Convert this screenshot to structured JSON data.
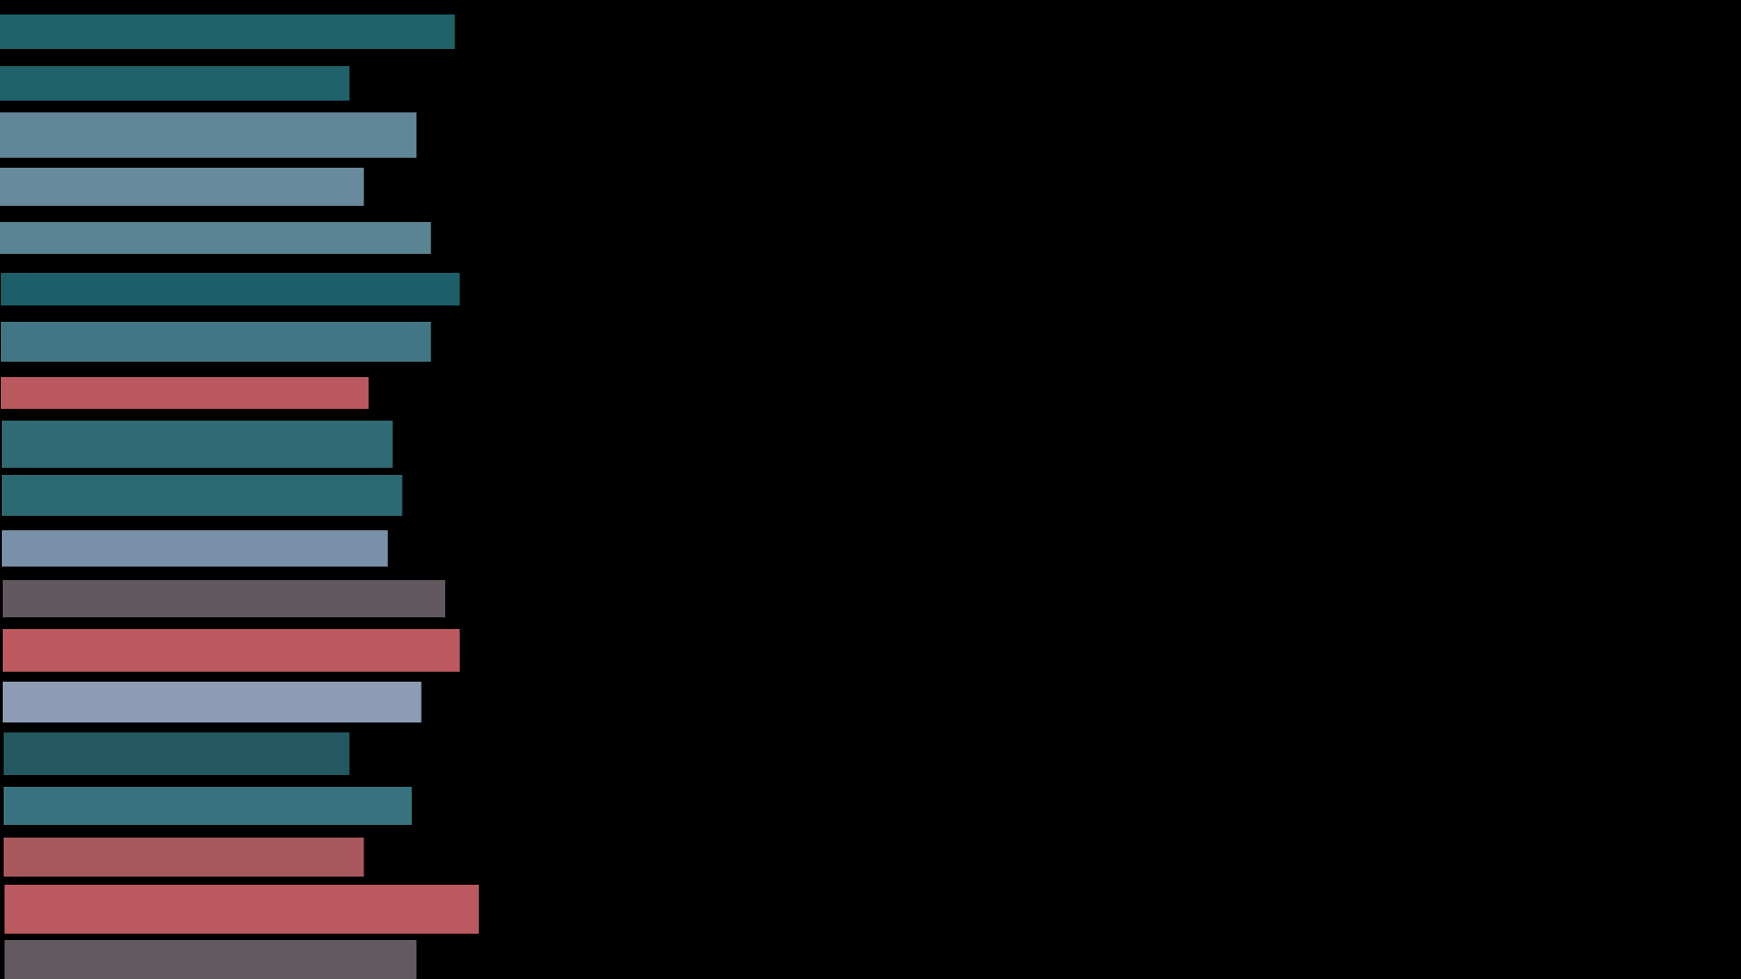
{
  "chart_data": {
    "type": "bar",
    "orientation": "horizontal",
    "title": "",
    "xlabel": "",
    "ylabel": "",
    "grid": false,
    "legend": "none",
    "background": "#000000",
    "values": [
      95,
      73,
      87,
      76,
      90,
      96,
      90,
      77,
      82,
      84,
      81,
      93,
      96,
      88,
      73,
      86,
      76,
      100,
      87
    ],
    "colors": [
      "#1f626a",
      "#1f626a",
      "#5f8597",
      "#688a9c",
      "#5a8494",
      "#1d5f68",
      "#417684",
      "#b9595f",
      "#306b75",
      "#2c6a73",
      "#7890a8",
      "#625860",
      "#bc5a60",
      "#8e9db6",
      "#235860",
      "#3a7380",
      "#a9585e",
      "#bb5960",
      "#625961"
    ]
  }
}
